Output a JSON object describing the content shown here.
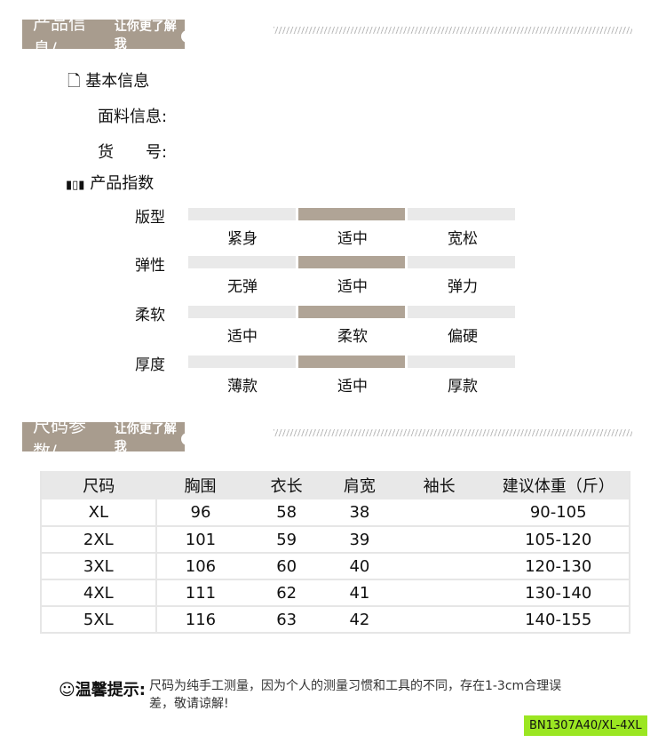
{
  "section1": {
    "title": "产品信息/",
    "subtitle": "让你更了解我"
  },
  "basic": {
    "heading": "基本信息",
    "fabric_label": "面料信息:",
    "sku_label": "货　　号:"
  },
  "index": {
    "heading": "产品指数",
    "rows": [
      {
        "label": "版型",
        "options": [
          "紧身",
          "适中",
          "宽松"
        ],
        "selected": 1
      },
      {
        "label": "弹性",
        "options": [
          "无弹",
          "适中",
          "弹力"
        ],
        "selected": 1
      },
      {
        "label": "柔软",
        "options": [
          "适中",
          "柔软",
          "偏硬"
        ],
        "selected": 1
      },
      {
        "label": "厚度",
        "options": [
          "薄款",
          "适中",
          "厚款"
        ],
        "selected": 1
      }
    ]
  },
  "section2": {
    "title": "尺码参数/",
    "subtitle": "让你更了解我"
  },
  "size_table": {
    "headers": [
      "尺码",
      "胸围",
      "衣长",
      "肩宽",
      "袖长",
      "建议体重（斤）"
    ],
    "rows": [
      [
        "XL",
        "96",
        "58",
        "38",
        "",
        "90-105"
      ],
      [
        "2XL",
        "101",
        "59",
        "39",
        "",
        "105-120"
      ],
      [
        "3XL",
        "106",
        "60",
        "40",
        "",
        "120-130"
      ],
      [
        "4XL",
        "111",
        "62",
        "41",
        "",
        "130-140"
      ],
      [
        "5XL",
        "116",
        "63",
        "42",
        "",
        "140-155"
      ]
    ]
  },
  "tip": {
    "label": "温馨提示:",
    "text": "尺码为纯手工测量，因为个人的测量习惯和工具的不同，存在1-3cm合理误差，敬请谅解!"
  },
  "code": "BN1307A40/XL-4XL",
  "colors": {
    "banner": "#a89c8e",
    "bar_selected": "#b0a496",
    "bar": "#e9e9e9",
    "code_bg": "#9be622"
  }
}
